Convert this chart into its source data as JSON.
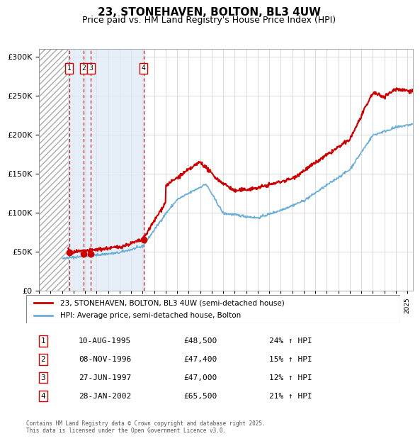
{
  "title": "23, STONEHAVEN, BOLTON, BL3 4UW",
  "subtitle": "Price paid vs. HM Land Registry's House Price Index (HPI)",
  "legend_line1": "23, STONEHAVEN, BOLTON, BL3 4UW (semi-detached house)",
  "legend_line2": "HPI: Average price, semi-detached house, Bolton",
  "footer": "Contains HM Land Registry data © Crown copyright and database right 2025.\nThis data is licensed under the Open Government Licence v3.0.",
  "transactions": [
    {
      "num": 1,
      "date": "1995-08-10",
      "price": 48500,
      "hpi_pct": 24,
      "x_year": 1995.61
    },
    {
      "num": 2,
      "date": "1996-11-08",
      "price": 47400,
      "hpi_pct": 15,
      "x_year": 1996.86
    },
    {
      "num": 3,
      "date": "1997-06-27",
      "price": 47000,
      "hpi_pct": 12,
      "x_year": 1997.49
    },
    {
      "num": 4,
      "date": "2002-01-28",
      "price": 65500,
      "hpi_pct": 21,
      "x_year": 2002.07
    }
  ],
  "hpi_color": "#6baed6",
  "price_color": "#cc0000",
  "dashed_line_color": "#cc0000",
  "hatch_color": "#cccccc",
  "shaded_region_color": "#dce9f5",
  "grid_color": "#cccccc",
  "background_color": "#ffffff",
  "ylim": [
    0,
    310000
  ],
  "xlim_start": 1993,
  "xlim_end": 2025.5,
  "table_rows": [
    [
      "1",
      "10-AUG-1995",
      "£48,500",
      "24% ↑ HPI"
    ],
    [
      "2",
      "08-NOV-1996",
      "£47,400",
      "15% ↑ HPI"
    ],
    [
      "3",
      "27-JUN-1997",
      "£47,000",
      "12% ↑ HPI"
    ],
    [
      "4",
      "28-JAN-2002",
      "£65,500",
      "21% ↑ HPI"
    ]
  ]
}
